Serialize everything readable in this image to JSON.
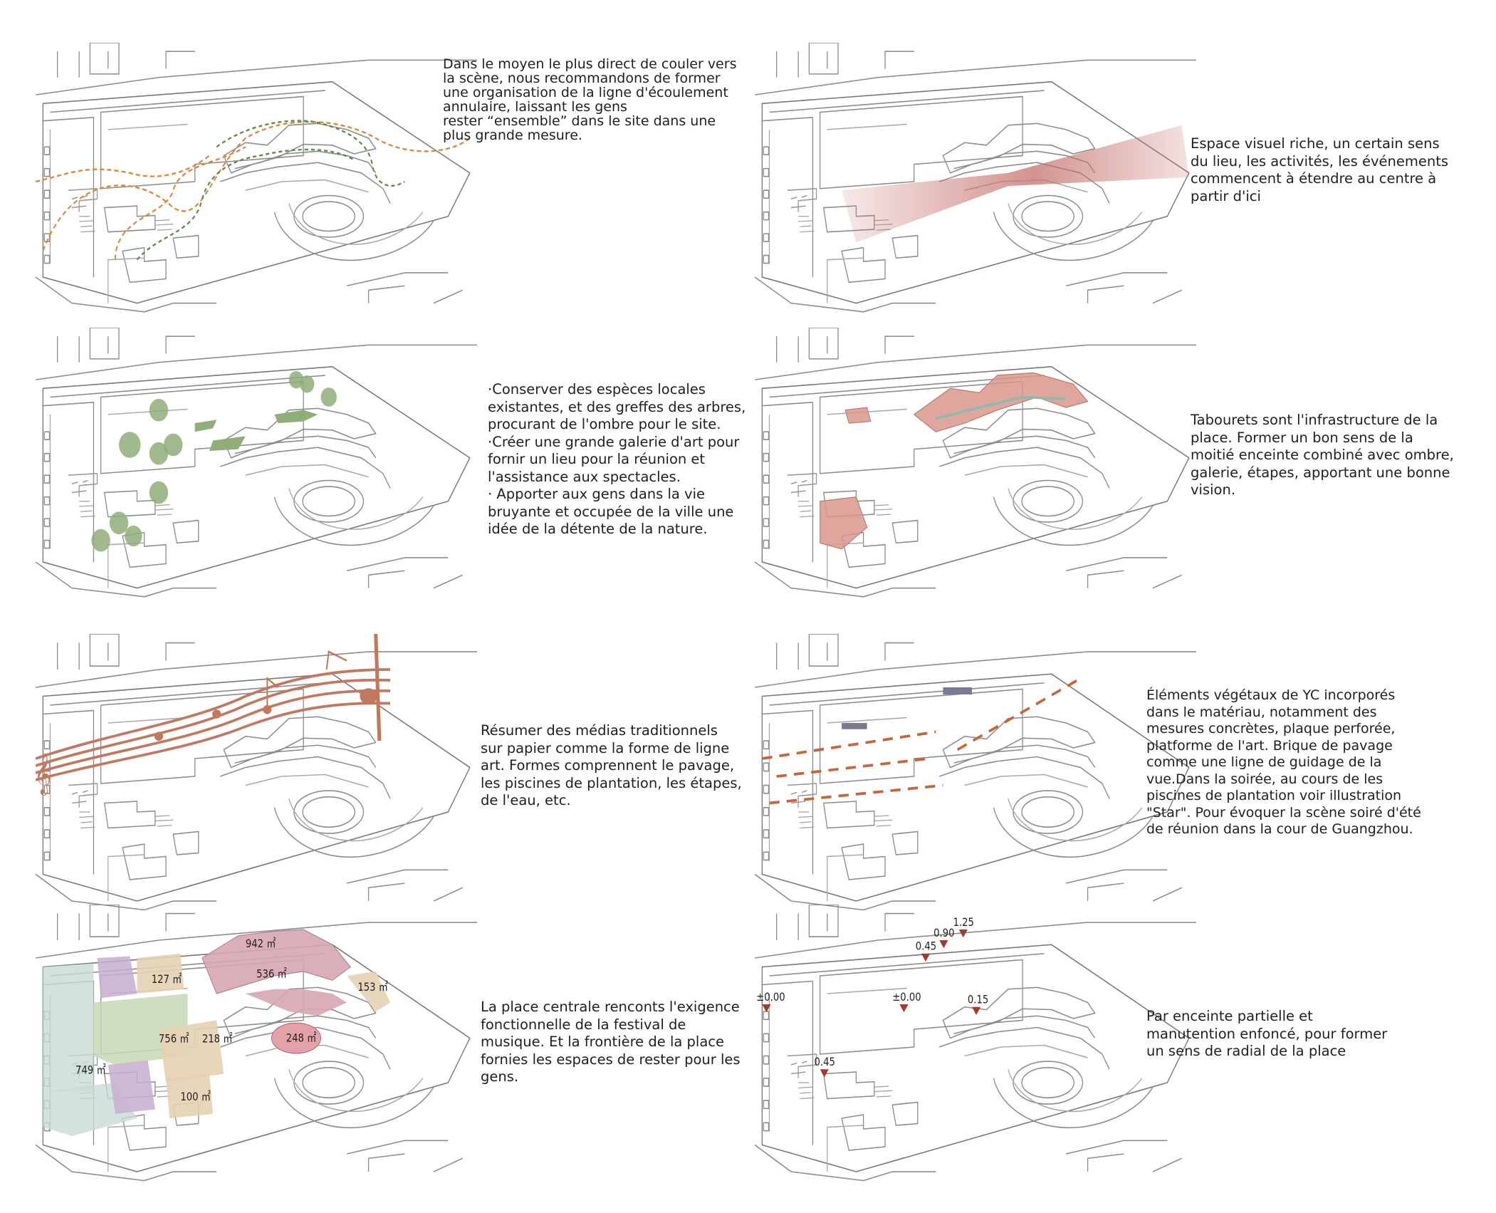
{
  "panels": [
    {
      "id": "flow-lines",
      "text": "Dans le moyen le plus direct de couler vers\nla scène, nous recommandons de former\nune organisation de la ligne d'écoulement\nannulaire, laissant les gens\nrester  “ensemble”  dans le site dans une\nplus grande mesure."
    },
    {
      "id": "visual-space",
      "text": "Espace visuel riche, un certain sens\ndu lieu, les activités, les événements\ncommencent à étendre au centre à\npartir d'ici"
    },
    {
      "id": "trees",
      "text": " ·Conserver des espèces locales\nexistantes, et des greffes des arbres,\nprocurant de l'ombre pour le site.\n ·Créer une grande galerie d'art pour\nfornir un lieu pour la réunion et\nl'assistance aux spectacles.\n  · Apporter aux gens dans la vie\nbruyante et occupée de la ville une\nidée de la détente de la nature."
    },
    {
      "id": "stools",
      "text": "Tabourets sont l'infrastructure de la\nplace. Former un bon sens de la\nmoitié enceinte combiné avec ombre,\ngalerie, étapes, apportant une bonne\nvision."
    },
    {
      "id": "music-lines",
      "text": "Résumer des médias traditionnels\nsur papier comme la forme de ligne\nart. Formes comprennent le pavage,\nles piscines de plantation, les étapes,\nde l'eau, etc."
    },
    {
      "id": "paving-guide",
      "text": "Éléments végétaux de YC incorporés\ndans le matériau, notamment des\nmesures concrètes, plaque perforée,\nplatforme de l'art. Brique de pavage\ncomme une ligne de guidage de la\nvue.Dans la soirée, au cours de les\npiscines de plantation voir illustration\n\"Star\". Pour évoquer la scène soiré d'été\nde réunion dans la cour de Guangzhou."
    },
    {
      "id": "area-zones",
      "text": "La place centrale renconts l'exigence\nfonctionnelle de la festival de\nmusique. Et la frontière de la place\nfornies les espaces de rester pour les\ngens."
    },
    {
      "id": "elevations",
      "text": "Par enceinte partielle et\nmanutention enfoncé, pour former\nun sens de radial de la place"
    }
  ],
  "area_labels": [
    {
      "value": "942",
      "unit": "㎡"
    },
    {
      "value": "536",
      "unit": "㎡"
    },
    {
      "value": "127",
      "unit": "㎡"
    },
    {
      "value": "153",
      "unit": "㎡"
    },
    {
      "value": "248",
      "unit": "㎡"
    },
    {
      "value": "756",
      "unit": "㎡"
    },
    {
      "value": "218",
      "unit": "㎡"
    },
    {
      "value": "749",
      "unit": "㎡"
    },
    {
      "value": "100",
      "unit": "㎡"
    }
  ],
  "elevation_labels": [
    "±0.00",
    "±0.00",
    "0.45",
    "0.90",
    "1.25",
    "0.15",
    "0.45"
  ],
  "colors": {
    "linework": "#8a8a8a",
    "orange_path": "#d98a3f",
    "green_path": "#5f8a4a",
    "fan_red": "#c4706a",
    "tree_green": "#8fae7a",
    "stool_pink": "#d9978c",
    "music_brown": "#c0785e",
    "paving_orange": "#c8643a",
    "zone_pink": "#d7a6b3",
    "zone_tan": "#e6d2b3",
    "zone_green": "#c9d7b5",
    "zone_blue": "#c9dbd5",
    "zone_purple": "#c6aed0",
    "marker_red": "#a23a2e"
  }
}
